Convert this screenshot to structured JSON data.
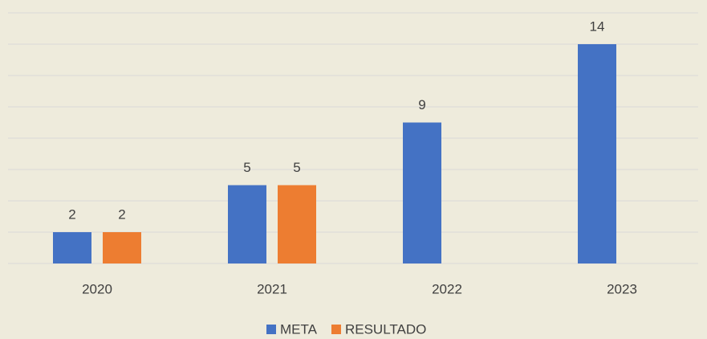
{
  "chart_data": {
    "type": "bar",
    "categories": [
      "2020",
      "2021",
      "2022",
      "2023"
    ],
    "series": [
      {
        "name": "META",
        "color": "#4472c4",
        "values": [
          2,
          5,
          9,
          14
        ]
      },
      {
        "name": "RESULTADO",
        "color": "#ed7d31",
        "values": [
          2,
          5,
          null,
          null
        ]
      }
    ],
    "ylim": [
      0,
      16
    ],
    "yticks": [
      0,
      2,
      4,
      6,
      8,
      10,
      12,
      14,
      16
    ],
    "grid": true,
    "legend": "bottom"
  }
}
